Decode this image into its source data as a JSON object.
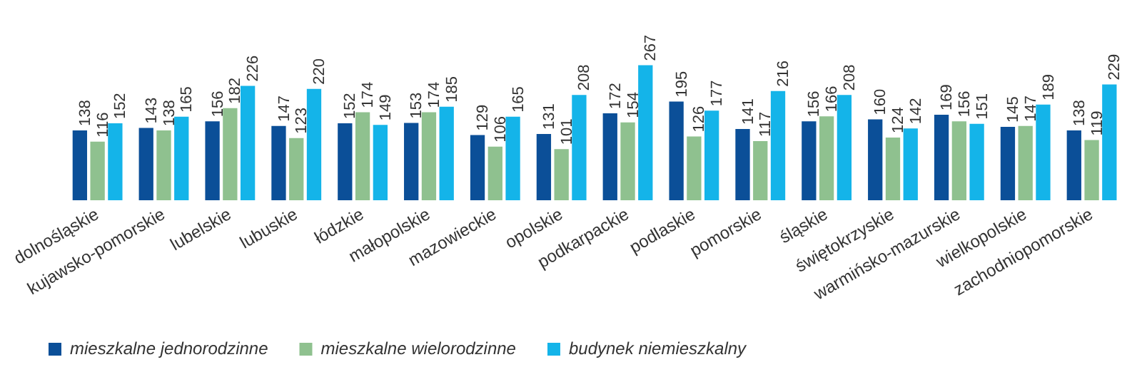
{
  "chart_data": {
    "type": "bar",
    "categories": [
      "dolnośląskie",
      "kujawsko-pomorskie",
      "lubelskie",
      "lubuskie",
      "łódzkie",
      "małopolskie",
      "mazowieckie",
      "opolskie",
      "podkarpackie",
      "podlaskie",
      "pomorskie",
      "śląskie",
      "świętokrzyskie",
      "warmińsko-mazurskie",
      "wielkopolskie",
      "zachodniopomorskie"
    ],
    "series": [
      {
        "name": "mieszkalne jednorodzinne",
        "color": "#0b4f98",
        "values": [
          138,
          143,
          156,
          147,
          152,
          153,
          129,
          131,
          172,
          195,
          141,
          156,
          160,
          169,
          145,
          138
        ]
      },
      {
        "name": "mieszkalne wielorodzinne",
        "color": "#8fc18f",
        "values": [
          116,
          138,
          182,
          123,
          174,
          174,
          106,
          101,
          154,
          126,
          117,
          166,
          124,
          156,
          147,
          119
        ]
      },
      {
        "name": "budynek niemieszkalny",
        "color": "#14b4e9",
        "values": [
          152,
          165,
          226,
          220,
          149,
          185,
          165,
          208,
          267,
          177,
          216,
          208,
          142,
          151,
          189,
          229
        ]
      }
    ],
    "data_labels": true,
    "legend": "bottom left",
    "grid": false,
    "tick_labels": "x"
  }
}
